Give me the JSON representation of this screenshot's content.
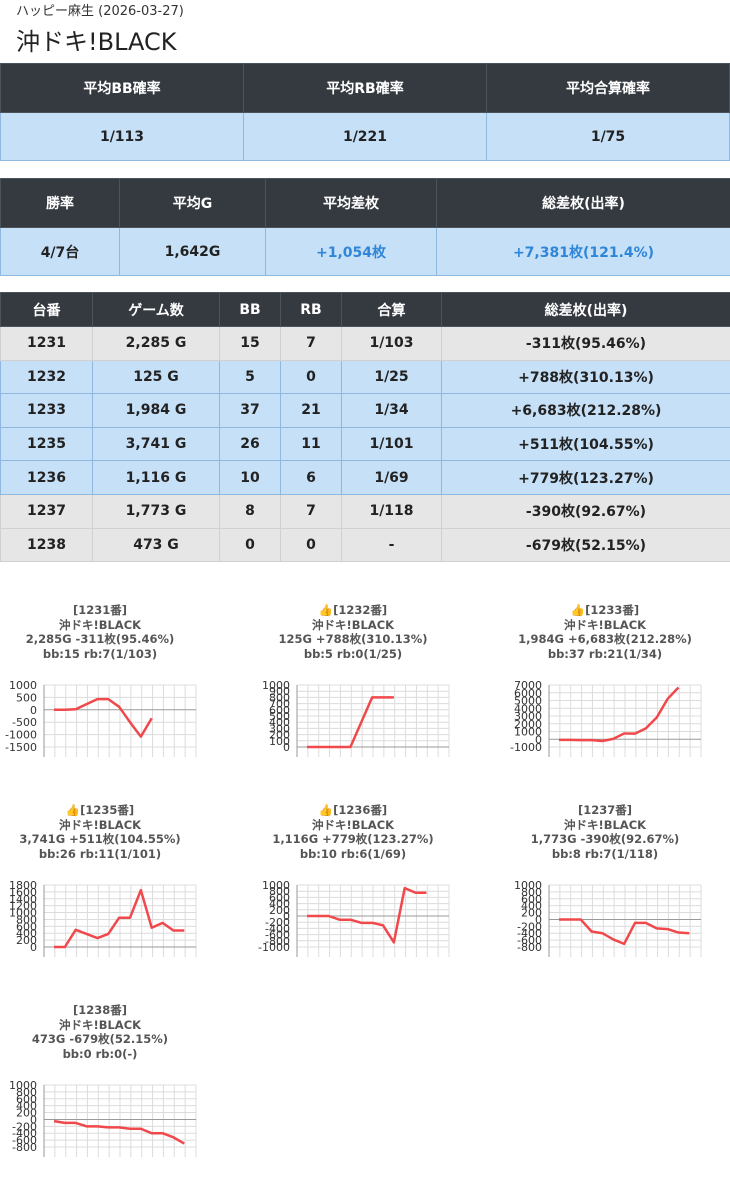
{
  "header": {
    "subtitle": "ハッピー麻生 (2026-03-27)",
    "title": "沖ドキ!BLACK"
  },
  "summary1": {
    "headers": [
      "平均BB確率",
      "平均RB確率",
      "平均合算確率"
    ],
    "values": [
      "1/113",
      "1/221",
      "1/75"
    ]
  },
  "summary2": {
    "headers": [
      "勝率",
      "平均G",
      "平均差枚",
      "総差枚(出率)"
    ],
    "values": [
      "4/7台",
      "1,642G",
      "+1,054枚",
      "+7,381枚(121.4%)"
    ]
  },
  "machines": {
    "headers": [
      "台番",
      "ゲーム数",
      "BB",
      "RB",
      "合算",
      "総差枚(出率)"
    ],
    "rows": [
      {
        "no": "1231",
        "games": "2,285 G",
        "bb": "15",
        "rb": "7",
        "total": "1/103",
        "diff": "-311枚(95.46%)",
        "win": false
      },
      {
        "no": "1232",
        "games": "125 G",
        "bb": "5",
        "rb": "0",
        "total": "1/25",
        "diff": "+788枚(310.13%)",
        "win": true
      },
      {
        "no": "1233",
        "games": "1,984 G",
        "bb": "37",
        "rb": "21",
        "total": "1/34",
        "diff": "+6,683枚(212.28%)",
        "win": true
      },
      {
        "no": "1235",
        "games": "3,741 G",
        "bb": "26",
        "rb": "11",
        "total": "1/101",
        "diff": "+511枚(104.55%)",
        "win": true
      },
      {
        "no": "1236",
        "games": "1,116 G",
        "bb": "10",
        "rb": "6",
        "total": "1/69",
        "diff": "+779枚(123.27%)",
        "win": true
      },
      {
        "no": "1237",
        "games": "1,773 G",
        "bb": "8",
        "rb": "7",
        "total": "1/118",
        "diff": "-390枚(92.67%)",
        "win": false
      },
      {
        "no": "1238",
        "games": "473 G",
        "bb": "0",
        "rb": "0",
        "total": "-",
        "diff": "-679枚(52.15%)",
        "win": false
      }
    ]
  },
  "colors": {
    "header_bg": "#343a40",
    "win_row": "#c6e0f7",
    "lose_row": "#e6e6e6",
    "positive_text": "#2f86d8",
    "line": "#f0484b"
  },
  "chart_data": [
    {
      "type": "line",
      "title": "[1231番]",
      "line2": "沖ドキ!BLACK",
      "line3": "2,285G -311枚(95.46%)",
      "line4": "bb:15 rb:7(1/103)",
      "thumb": false,
      "yticks": [
        1000,
        500,
        0,
        -500,
        -1000,
        -1500
      ],
      "ylim": [
        -1500,
        1000
      ],
      "values": [
        0,
        0,
        20,
        230,
        430,
        430,
        120,
        -500,
        -1080,
        -340
      ]
    },
    {
      "type": "line",
      "title": "[1232番]",
      "line2": "沖ドキ!BLACK",
      "line3": "125G +788枚(310.13%)",
      "line4": "bb:5 rb:0(1/25)",
      "thumb": true,
      "yticks": [
        1000,
        900,
        800,
        700,
        600,
        500,
        400,
        300,
        200,
        100,
        0
      ],
      "ylim": [
        0,
        1000
      ],
      "values": [
        0,
        0,
        0,
        0,
        0,
        400,
        800,
        800,
        800
      ]
    },
    {
      "type": "line",
      "title": "[1233番]",
      "line2": "沖ドキ!BLACK",
      "line3": "1,984G +6,683枚(212.28%)",
      "line4": "bb:37 rb:21(1/34)",
      "thumb": true,
      "yticks": [
        7000,
        6000,
        5000,
        4000,
        3000,
        2000,
        1000,
        0,
        -1000
      ],
      "ylim": [
        -1000,
        7000
      ],
      "values": [
        -80,
        -80,
        -120,
        -120,
        -230,
        50,
        750,
        720,
        1400,
        2800,
        5200,
        6680
      ]
    },
    {
      "type": "line",
      "title": "[1235番]",
      "line2": "沖ドキ!BLACK",
      "line3": "3,741G +511枚(104.55%)",
      "line4": "bb:26 rb:11(1/101)",
      "thumb": true,
      "yticks": [
        1800,
        1600,
        1400,
        1200,
        1000,
        800,
        600,
        400,
        200,
        0
      ],
      "ylim": [
        0,
        1800
      ],
      "values": [
        0,
        0,
        500,
        380,
        260,
        380,
        850,
        850,
        1650,
        560,
        700,
        480,
        480
      ]
    },
    {
      "type": "line",
      "title": "[1236番]",
      "line2": "沖ドキ!BLACK",
      "line3": "1,116G +779枚(123.27%)",
      "line4": "bb:10 rb:6(1/69)",
      "thumb": true,
      "yticks": [
        1000,
        800,
        600,
        400,
        200,
        0,
        -200,
        -400,
        -600,
        -800,
        -1000
      ],
      "ylim": [
        -1000,
        1000
      ],
      "values": [
        0,
        0,
        0,
        -120,
        -120,
        -220,
        -220,
        -300,
        -850,
        900,
        750,
        750
      ]
    },
    {
      "type": "line",
      "title": "[1237番]",
      "line2": "沖ドキ!BLACK",
      "line3": "1,773G -390枚(92.67%)",
      "line4": "bb:8 rb:7(1/118)",
      "thumb": false,
      "yticks": [
        1000,
        800,
        600,
        400,
        200,
        0,
        -200,
        -400,
        -600,
        -800
      ],
      "ylim": [
        -800,
        1000
      ],
      "values": [
        0,
        0,
        0,
        -350,
        -400,
        -580,
        -710,
        -100,
        -100,
        -260,
        -280,
        -380,
        -400
      ]
    },
    {
      "type": "line",
      "title": "[1238番]",
      "line2": "沖ドキ!BLACK",
      "line3": "473G -679枚(52.15%)",
      "line4": "bb:0 rb:0(-)",
      "thumb": false,
      "yticks": [
        1000,
        800,
        600,
        400,
        200,
        0,
        -200,
        -400,
        -600,
        -800
      ],
      "ylim": [
        -800,
        1000
      ],
      "values": [
        -50,
        -100,
        -100,
        -200,
        -200,
        -230,
        -230,
        -270,
        -270,
        -400,
        -400,
        -520,
        -700
      ]
    }
  ]
}
